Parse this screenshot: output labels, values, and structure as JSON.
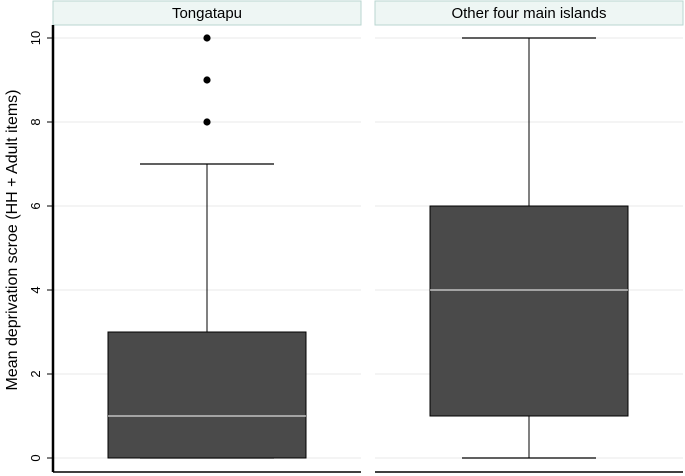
{
  "chart_data": {
    "type": "box",
    "ylabel": "Mean deprivation scroe (HH + Adult items)",
    "ylim": [
      0,
      10
    ],
    "yticks": [
      0,
      2,
      4,
      6,
      8,
      10
    ],
    "grid": true,
    "panels": [
      {
        "title": "Tongatapu",
        "whisker_low": 0,
        "q1": 0,
        "median": 1,
        "q3": 3,
        "whisker_high": 7,
        "outliers": [
          8,
          9,
          10
        ]
      },
      {
        "title": "Other four main islands",
        "whisker_low": 0,
        "q1": 1,
        "median": 4,
        "q3": 6,
        "whisker_high": 10,
        "outliers": []
      }
    ]
  },
  "colors": {
    "box_fill": "#4a4a4a",
    "median_line": "#ffffff",
    "header_bg": "#eef6f4",
    "header_border": "#b9d6d0",
    "grid": "#e8e8e8",
    "frame": "#000000"
  }
}
